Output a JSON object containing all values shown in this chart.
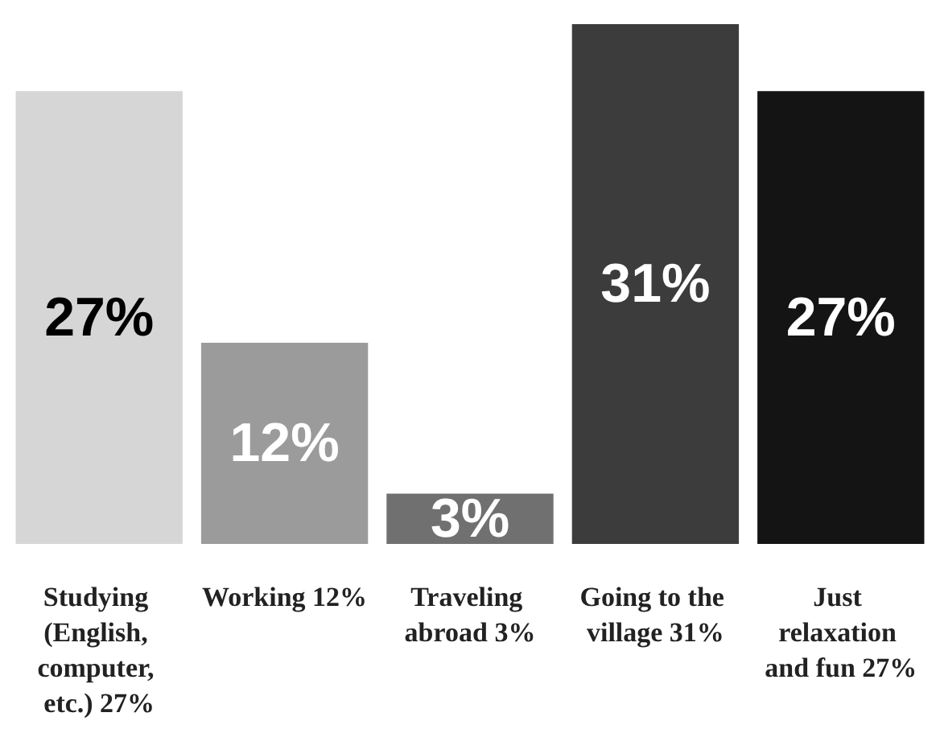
{
  "chart_data": {
    "type": "bar",
    "categories": [
      "Studying (English, computer, etc.) 27%",
      "Working 12%",
      "Traveling abroad 3%",
      "Going to the village 31%",
      "Just relaxation and fun 27%"
    ],
    "values": [
      27,
      12,
      3,
      31,
      27
    ],
    "colors": [
      "#d6d6d6",
      "#9b9b9b",
      "#707070",
      "#3c3c3c",
      "#141414"
    ],
    "value_labels": [
      "27%",
      "12%",
      "3%",
      "31%",
      "27%"
    ]
  }
}
